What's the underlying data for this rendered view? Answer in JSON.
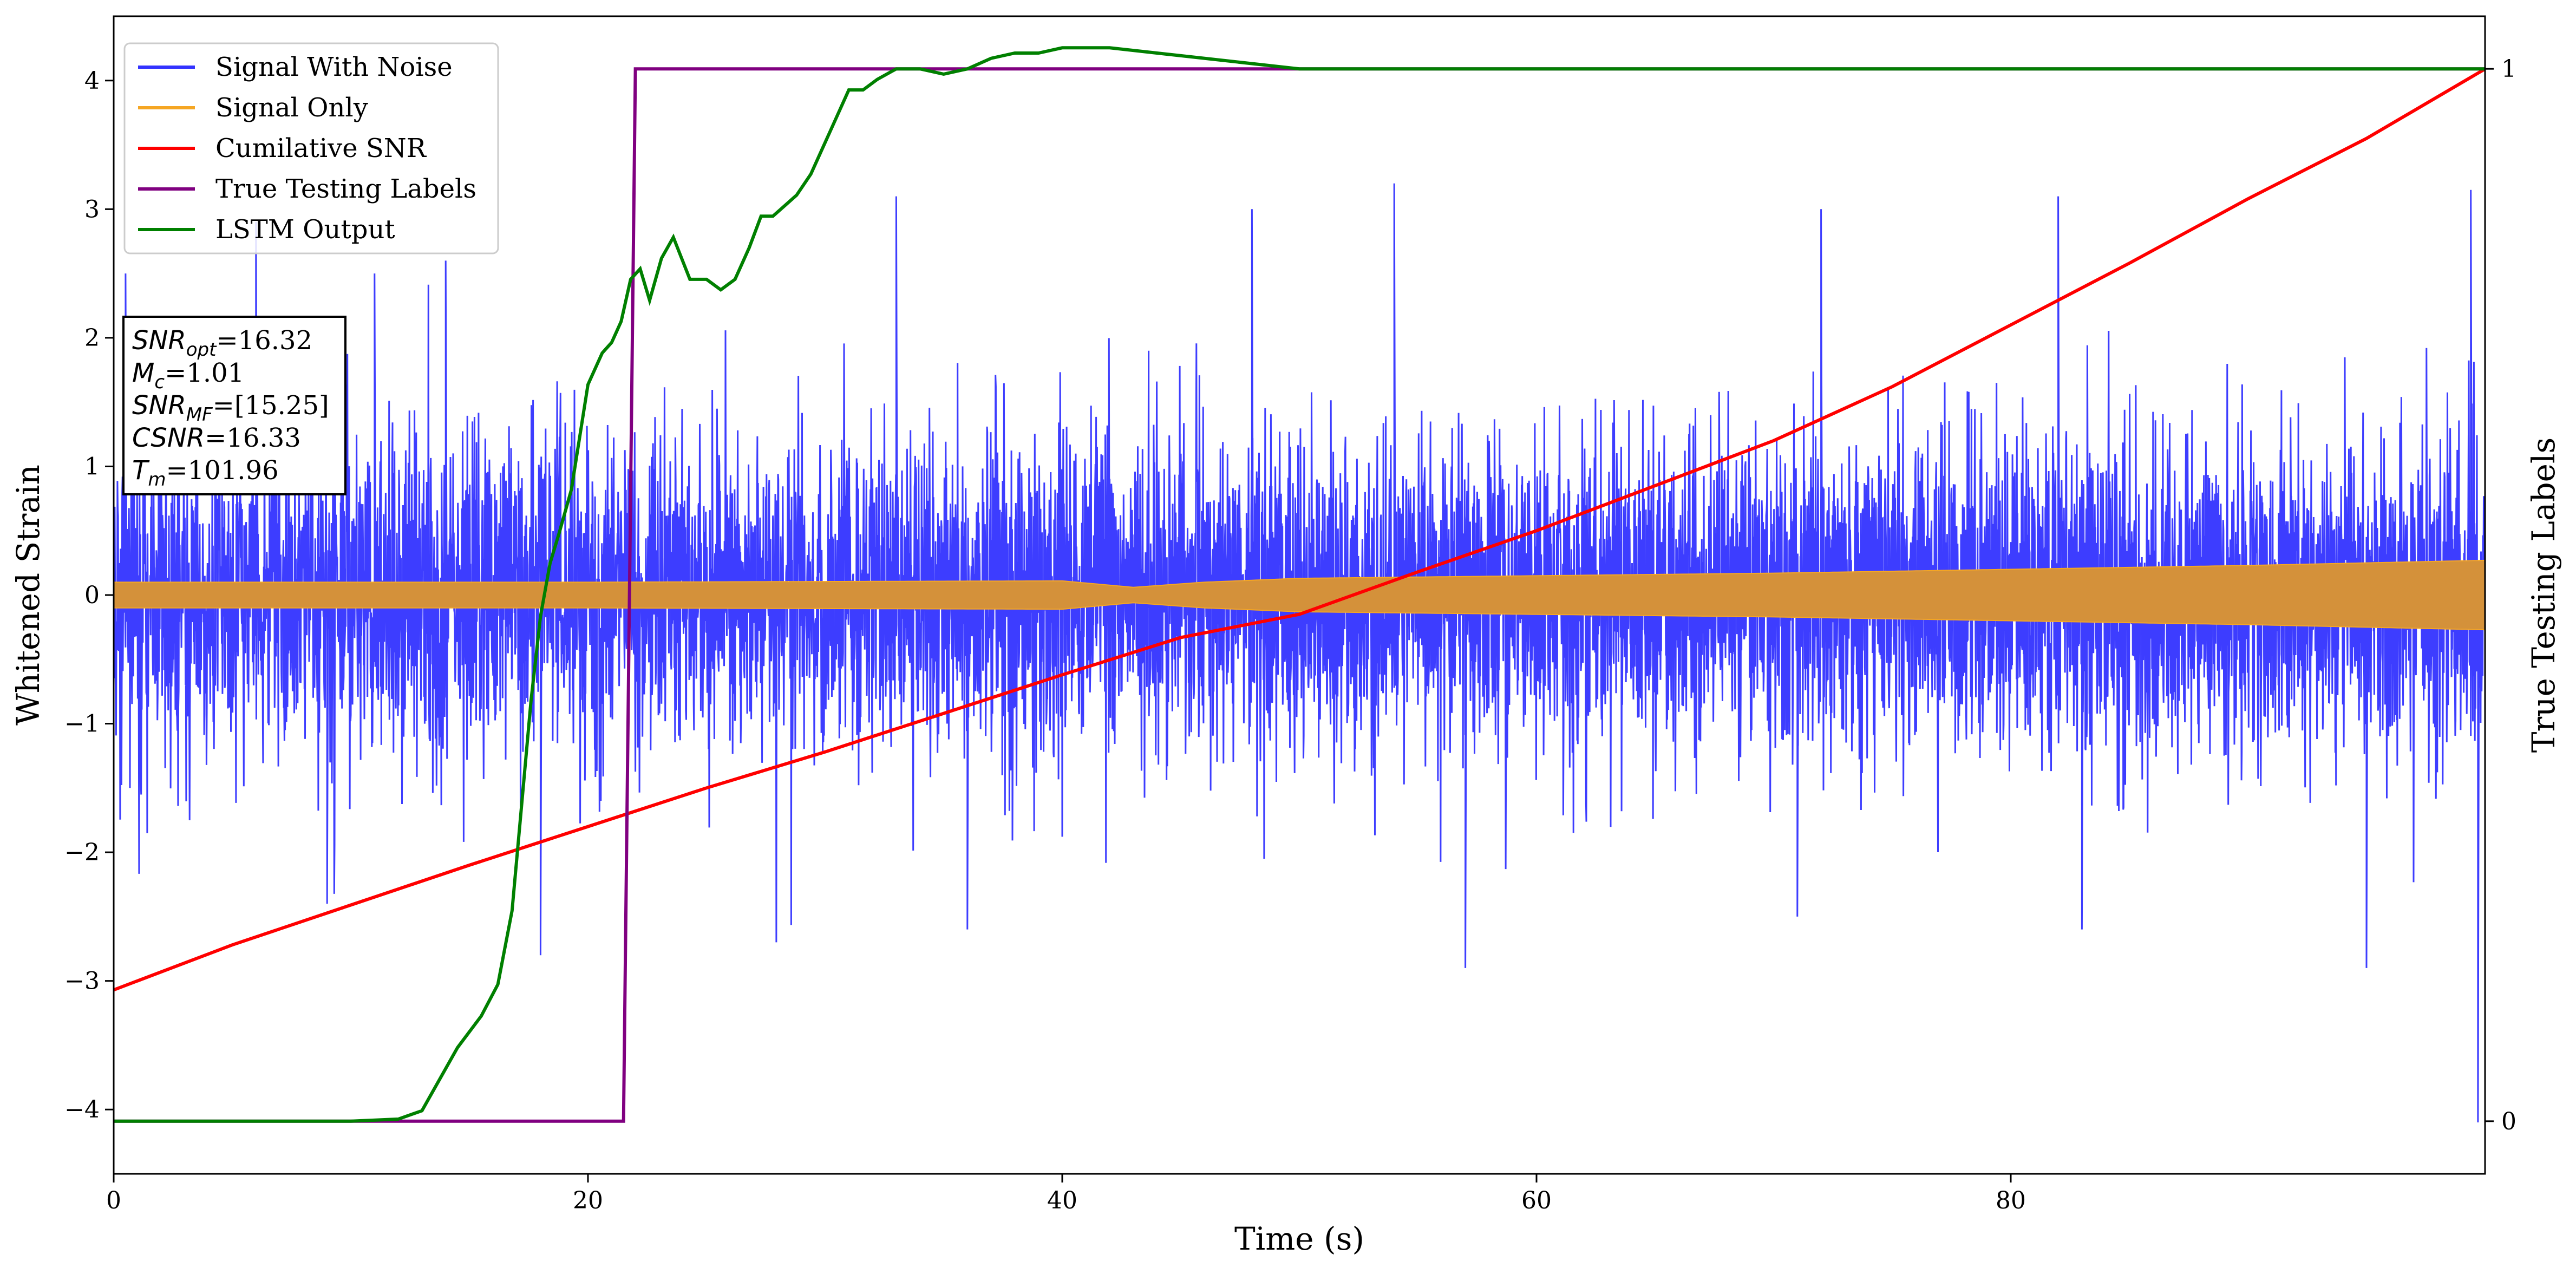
{
  "chart_data": {
    "type": "line",
    "xlabel": "Time (s)",
    "ylabel": "Whitened Strain",
    "ylabel_right": "True Testing Labels",
    "xlim": [
      0,
      100
    ],
    "ylim": [
      -4.5,
      4.5
    ],
    "ylim_right": [
      -0.05,
      1.05
    ],
    "xticks": [
      0,
      20,
      40,
      60,
      80
    ],
    "xtick_labels": [
      "0",
      "20",
      "40",
      "60",
      "80"
    ],
    "yticks": [
      -4,
      -3,
      -2,
      -1,
      0,
      1,
      2,
      3,
      4
    ],
    "ytick_labels": [
      "−4",
      "−3",
      "−2",
      "−1",
      "0",
      "1",
      "2",
      "3",
      "4"
    ],
    "yticks_right": [
      0,
      1
    ],
    "ytick_labels_right": [
      "0",
      "1"
    ],
    "grid": false,
    "legend_position": "top-left",
    "series": [
      {
        "name": "Signal With Noise",
        "color": "#3333ff",
        "axis": "left",
        "style": "noise",
        "x_range": [
          0,
          100
        ],
        "typical_amplitude": 1.2,
        "peak_values_approx": [
          2.5,
          2.9,
          2.5,
          2.6,
          3.1,
          3.0,
          3.2,
          3.0,
          3.1,
          3.15
        ],
        "trough_values_approx": [
          -2.4,
          -2.8,
          -2.6,
          -2.9,
          -2.5,
          -2.6,
          -2.9,
          -4.1
        ]
      },
      {
        "name": "Signal Only",
        "color": "#f5a623",
        "axis": "left",
        "style": "envelope",
        "x": [
          0,
          20,
          40,
          43,
          46,
          50,
          60,
          70,
          80,
          90,
          100
        ],
        "amplitude": [
          0.1,
          0.1,
          0.11,
          0.06,
          0.1,
          0.13,
          0.15,
          0.17,
          0.2,
          0.23,
          0.27
        ]
      },
      {
        "name": "Cumilative SNR",
        "color": "#ff0000",
        "axis": "left",
        "x": [
          0,
          5,
          10,
          15,
          20,
          25,
          30,
          35,
          40,
          45,
          50,
          55,
          60,
          65,
          70,
          75,
          80,
          85,
          90,
          95,
          100
        ],
        "values": [
          -3.07,
          -2.72,
          -2.41,
          -2.1,
          -1.8,
          -1.5,
          -1.22,
          -0.92,
          -0.62,
          -0.33,
          -0.15,
          0.18,
          0.5,
          0.85,
          1.2,
          1.62,
          2.1,
          2.58,
          3.08,
          3.55,
          4.09
        ]
      },
      {
        "name": "True Testing Labels",
        "color": "#800080",
        "axis": "right",
        "x": [
          0,
          21.5,
          22.0,
          100
        ],
        "values": [
          0,
          0,
          1,
          1
        ]
      },
      {
        "name": "LSTM Output",
        "color": "#008000",
        "axis": "right",
        "x": [
          0,
          10,
          12,
          13,
          13.5,
          14.5,
          15.5,
          16.2,
          16.8,
          17.2,
          17.6,
          18,
          18.4,
          18.8,
          19.3,
          20,
          20.6,
          21,
          21.4,
          21.8,
          22.2,
          22.6,
          23.1,
          23.6,
          24.3,
          25,
          25.6,
          26.2,
          26.8,
          27.3,
          27.8,
          28.3,
          28.8,
          29.4,
          30.2,
          31,
          31.6,
          32.2,
          33,
          34,
          35,
          36,
          37,
          38,
          39,
          40,
          42,
          50,
          100
        ],
        "values": [
          0,
          0,
          0.002,
          0.01,
          0.03,
          0.07,
          0.1,
          0.13,
          0.2,
          0.3,
          0.4,
          0.48,
          0.53,
          0.56,
          0.6,
          0.7,
          0.73,
          0.74,
          0.76,
          0.8,
          0.81,
          0.78,
          0.82,
          0.84,
          0.8,
          0.8,
          0.79,
          0.8,
          0.83,
          0.86,
          0.86,
          0.87,
          0.88,
          0.9,
          0.94,
          0.98,
          0.98,
          0.99,
          1.0,
          1.0,
          0.995,
          1.0,
          1.01,
          1.015,
          1.015,
          1.02,
          1.02,
          1.0,
          1.0
        ]
      }
    ],
    "info_box": {
      "lines": [
        {
          "var": "SNR",
          "sub": "opt",
          "text": "=16.32"
        },
        {
          "var": "M",
          "sub": "c",
          "text": "=1.01"
        },
        {
          "var": "SNR",
          "sub": "MF",
          "text": "=[15.25]"
        },
        {
          "var": "CSNR",
          "sub": "",
          "text": "=16.33"
        },
        {
          "var": "T",
          "sub": "m",
          "text": "=101.96"
        }
      ]
    }
  }
}
